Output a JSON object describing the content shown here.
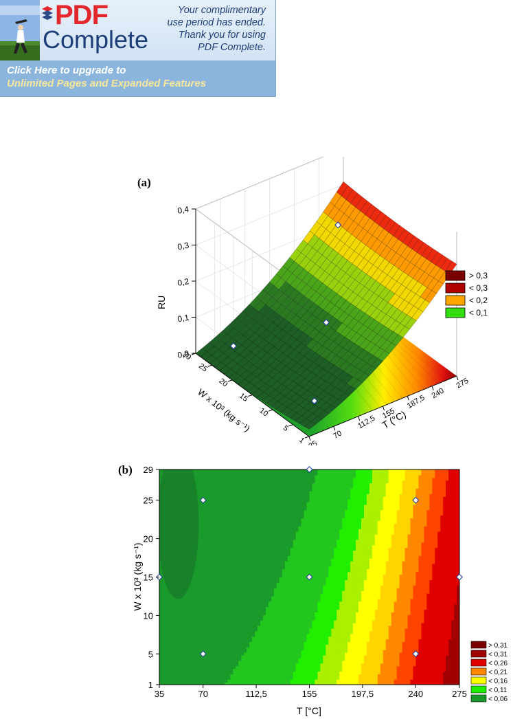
{
  "banner": {
    "logo_brand": "PDF",
    "logo_product": "Complete",
    "message_lines": [
      "Your complimentary",
      "use period has ended.",
      "Thank you for using",
      "PDF Complete."
    ],
    "upgrade_lines": [
      "Click Here to upgrade to",
      "Unlimited Pages and Expanded Features"
    ],
    "colors": {
      "brand_red": "#e2262b",
      "navy": "#1d3e77",
      "upgrade_top": "#ffffff",
      "upgrade_bottom": "#f6e79a"
    }
  },
  "chart_data": [
    {
      "panel_label": "(a)",
      "type": "surface",
      "zlabel": "RU",
      "xlabel": "T (°C)",
      "ylabel": "W x 10³ (kg s⁻¹)",
      "x_ticks": [
        "35",
        "70",
        "112,5",
        "155",
        "187,5",
        "240",
        "275"
      ],
      "y_ticks": [
        "1",
        "5",
        "10",
        "15",
        "20",
        "25",
        "29"
      ],
      "z_ticks": [
        "0,0",
        "0,1",
        "0,2",
        "0,3",
        "0,4"
      ],
      "xlim": [
        35,
        275
      ],
      "ylim": [
        1,
        29
      ],
      "zlim": [
        0,
        0.4
      ],
      "legend": [
        {
          "label": "> 0,3",
          "color": "#7a0000"
        },
        {
          "label": "< 0,3",
          "color": "#b00000"
        },
        {
          "label": "< 0,2",
          "color": "#ffa500"
        },
        {
          "label": "< 0,1",
          "color": "#33dd11"
        }
      ],
      "design_points": [
        {
          "x": 70,
          "y": 25,
          "z": 0.08
        },
        {
          "x": 240,
          "y": 25,
          "z": 0.16
        },
        {
          "x": 155,
          "y": 15,
          "z": 0.12
        },
        {
          "x": 70,
          "y": 5,
          "z": 0.11
        }
      ],
      "grid": true,
      "legend_position": "right"
    },
    {
      "panel_label": "(b)",
      "type": "contour",
      "xlabel": "T [°C]",
      "ylabel": "W x 10³ (kg s⁻¹)",
      "x_ticks": [
        "35",
        "70",
        "112,5",
        "155",
        "197,5",
        "240",
        "275"
      ],
      "x_tick_values": [
        35,
        70,
        112.5,
        155,
        197.5,
        240,
        275
      ],
      "y_ticks": [
        "1",
        "5",
        "10",
        "15",
        "20",
        "25",
        "29"
      ],
      "y_tick_values": [
        1,
        5,
        10,
        15,
        20,
        25,
        29
      ],
      "xlim": [
        35,
        275
      ],
      "ylim": [
        1,
        29
      ],
      "legend": [
        {
          "label": "> 0,31",
          "color": "#7a0000"
        },
        {
          "label": "< 0,31",
          "color": "#a00000"
        },
        {
          "label": "< 0,26",
          "color": "#e00000"
        },
        {
          "label": "< 0,21",
          "color": "#ff8800"
        },
        {
          "label": "< 0,16",
          "color": "#ffff00"
        },
        {
          "label": "< 0,11",
          "color": "#22ee00"
        },
        {
          "label": "< 0,06",
          "color": "#1a9a2a"
        }
      ],
      "design_points": [
        {
          "x": 70,
          "y": 25
        },
        {
          "x": 240,
          "y": 25
        },
        {
          "x": 155,
          "y": 15
        },
        {
          "x": 70,
          "y": 5
        },
        {
          "x": 240,
          "y": 5
        },
        {
          "x": 155,
          "y": 29
        },
        {
          "x": 35,
          "y": 15
        },
        {
          "x": 275,
          "y": 15
        }
      ],
      "legend_position": "bottom-right"
    }
  ]
}
